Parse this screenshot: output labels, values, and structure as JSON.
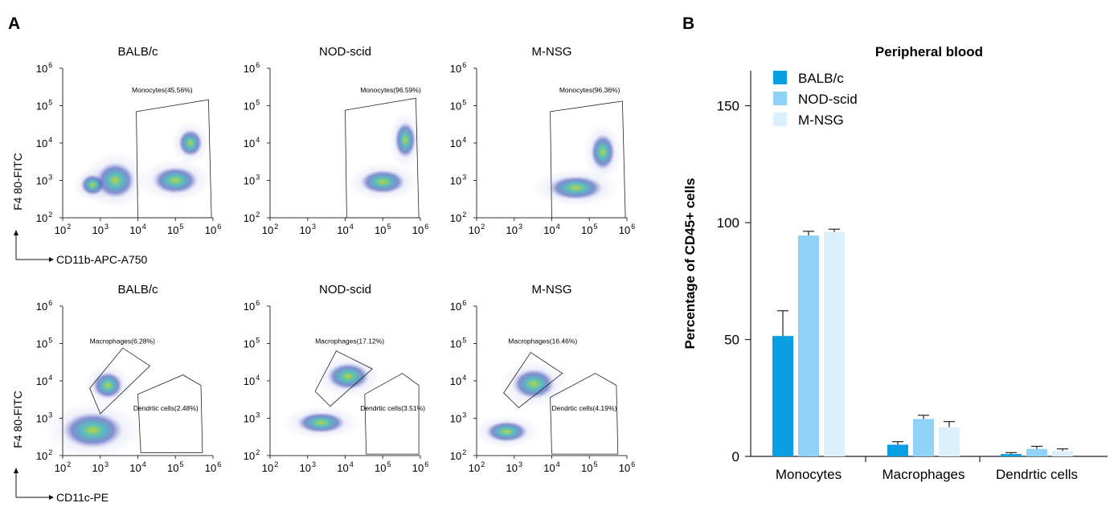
{
  "panel_labels": {
    "a": "A",
    "b": "B"
  },
  "facs": {
    "tick_labels": [
      "10",
      "2",
      "10",
      "3",
      "10",
      "4",
      "10",
      "5",
      "10",
      "6"
    ],
    "rows": [
      {
        "x_axis_label": "CD11b-APC-A750",
        "y_axis_label": "F4 80-FITC",
        "plots": [
          {
            "title": "BALB/c",
            "gates": [
              "Monocytes(45.56%)"
            ]
          },
          {
            "title": "NOD-scid",
            "gates": [
              "Monocytes(96.59%)"
            ]
          },
          {
            "title": "M-NSG",
            "gates": [
              "Monocytes(96.36%)"
            ]
          }
        ]
      },
      {
        "x_axis_label": "CD11c-PE",
        "y_axis_label": "F4 80-FITC",
        "plots": [
          {
            "title": "BALB/c",
            "gates": [
              "Macrophages(6.28%)",
              "Dendrtic cells(2.48%)"
            ]
          },
          {
            "title": "NOD-scid",
            "gates": [
              "Macrophages(17.12%)",
              "Dendrtic cells(3.51%)"
            ]
          },
          {
            "title": "M-NSG",
            "gates": [
              "Macrophages(16.46%)",
              "Dendrtic cells(4.19%)"
            ]
          }
        ]
      }
    ]
  },
  "chart_data": {
    "type": "bar",
    "title": "Peripheral blood",
    "xlabel": "",
    "ylabel": "Percentage of CD45+ cells",
    "ylim": [
      0,
      165
    ],
    "yticks": [
      0,
      50,
      100,
      150
    ],
    "ytick_labels": [
      "0",
      "50",
      "100",
      "150"
    ],
    "categories": [
      "Monocytes",
      "Macrophages",
      "Dendrtic cells"
    ],
    "series": [
      {
        "name": "BALB/c",
        "color": "#0a9fe3",
        "values": [
          51.5,
          5.0,
          1.0
        ],
        "errors": [
          10.8,
          1.3,
          0.6
        ]
      },
      {
        "name": "NOD-scid",
        "color": "#8fd2f5",
        "values": [
          94.5,
          16.0,
          3.2
        ],
        "errors": [
          1.8,
          1.6,
          1.1
        ]
      },
      {
        "name": "M-NSG",
        "color": "#dcf0fb",
        "values": [
          96.0,
          12.5,
          2.3
        ],
        "errors": [
          1.2,
          2.4,
          0.9
        ]
      }
    ]
  }
}
